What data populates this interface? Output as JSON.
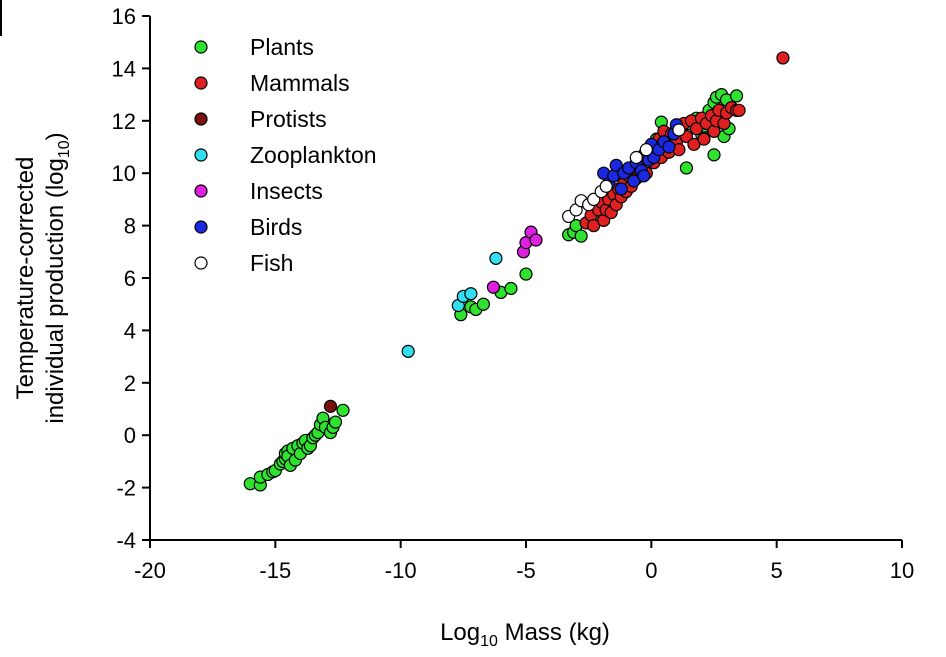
{
  "chart_data": {
    "type": "scatter",
    "title": "",
    "xlabel": {
      "pre": "Log",
      "sub": "10",
      "post": " Mass (kg)"
    },
    "ylabel": {
      "line1": "Temperature-corrected",
      "line2_pre": "individual production (log",
      "line2_sub": "10",
      "line2_post": ")"
    },
    "xlim": [
      -20,
      10
    ],
    "ylim": [
      -4,
      16
    ],
    "xticks": [
      -20,
      -15,
      -10,
      -5,
      0,
      5,
      10
    ],
    "yticks": [
      -4,
      -2,
      0,
      2,
      4,
      6,
      8,
      10,
      12,
      14,
      16
    ],
    "grid": false,
    "legend_position": "top-left",
    "series": [
      {
        "name": "Plants",
        "color": "#2ee22e",
        "points": [
          [
            -16.0,
            -1.85
          ],
          [
            -15.6,
            -1.9
          ],
          [
            -15.6,
            -1.6
          ],
          [
            -15.3,
            -1.5
          ],
          [
            -15.1,
            -1.4
          ],
          [
            -15.0,
            -1.35
          ],
          [
            -14.8,
            -1.1
          ],
          [
            -14.7,
            -1.0
          ],
          [
            -14.6,
            -0.9
          ],
          [
            -14.6,
            -0.7
          ],
          [
            -14.5,
            -0.6
          ],
          [
            -14.5,
            -0.8
          ],
          [
            -14.4,
            -1.15
          ],
          [
            -14.3,
            -0.5
          ],
          [
            -14.2,
            -0.95
          ],
          [
            -14.1,
            -0.4
          ],
          [
            -14.0,
            -0.7
          ],
          [
            -13.9,
            -0.3
          ],
          [
            -13.8,
            -0.2
          ],
          [
            -13.7,
            -0.5
          ],
          [
            -13.6,
            -0.4
          ],
          [
            -13.5,
            -0.1
          ],
          [
            -13.4,
            0.0
          ],
          [
            -13.3,
            0.1
          ],
          [
            -13.2,
            0.4
          ],
          [
            -13.1,
            0.65
          ],
          [
            -13.0,
            0.3
          ],
          [
            -12.8,
            0.1
          ],
          [
            -12.7,
            0.3
          ],
          [
            -12.6,
            0.5
          ],
          [
            -12.3,
            0.95
          ],
          [
            -7.6,
            4.6
          ],
          [
            -7.2,
            4.9
          ],
          [
            -7.0,
            4.8
          ],
          [
            -6.7,
            5.0
          ],
          [
            -6.0,
            5.45
          ],
          [
            -5.6,
            5.6
          ],
          [
            -5.0,
            6.15
          ],
          [
            -3.3,
            7.65
          ],
          [
            -3.1,
            7.75
          ],
          [
            -3.0,
            8.0
          ],
          [
            -2.8,
            7.6
          ],
          [
            -2.0,
            8.3
          ],
          [
            -1.5,
            8.9
          ],
          [
            -1.0,
            9.6
          ],
          [
            -0.5,
            10.3
          ],
          [
            -0.3,
            10.6
          ],
          [
            -0.1,
            10.8
          ],
          [
            0.2,
            11.3
          ],
          [
            0.4,
            11.95
          ],
          [
            0.6,
            11.4
          ],
          [
            0.9,
            11.0
          ],
          [
            1.2,
            11.6
          ],
          [
            1.4,
            10.2
          ],
          [
            1.5,
            11.9
          ],
          [
            1.8,
            12.1
          ],
          [
            2.0,
            11.5
          ],
          [
            2.1,
            11.8
          ],
          [
            2.3,
            12.4
          ],
          [
            2.4,
            12.1
          ],
          [
            2.5,
            12.7
          ],
          [
            2.5,
            10.7
          ],
          [
            2.6,
            12.9
          ],
          [
            2.7,
            12.3
          ],
          [
            2.8,
            13.0
          ],
          [
            2.9,
            11.4
          ],
          [
            3.0,
            12.8
          ],
          [
            3.1,
            11.7
          ],
          [
            3.2,
            12.5
          ],
          [
            3.4,
            12.95
          ]
        ]
      },
      {
        "name": "Mammals",
        "color": "#e02020",
        "points": [
          [
            -2.6,
            8.1
          ],
          [
            -2.4,
            8.4
          ],
          [
            -2.3,
            8.0
          ],
          [
            -2.1,
            8.6
          ],
          [
            -2.0,
            8.9
          ],
          [
            -1.9,
            8.2
          ],
          [
            -1.8,
            8.6
          ],
          [
            -1.7,
            9.0
          ],
          [
            -1.6,
            8.5
          ],
          [
            -1.5,
            9.2
          ],
          [
            -1.4,
            8.8
          ],
          [
            -1.3,
            9.4
          ],
          [
            -1.2,
            9.1
          ],
          [
            -1.1,
            9.6
          ],
          [
            -1.0,
            9.3
          ],
          [
            -0.9,
            9.9
          ],
          [
            -0.8,
            9.5
          ],
          [
            -0.7,
            10.2
          ],
          [
            -0.6,
            9.8
          ],
          [
            -0.5,
            10.4
          ],
          [
            -0.4,
            9.9
          ],
          [
            -0.3,
            10.7
          ],
          [
            -0.2,
            10.0
          ],
          [
            0.0,
            11.0
          ],
          [
            0.1,
            10.4
          ],
          [
            0.3,
            11.3
          ],
          [
            0.4,
            10.6
          ],
          [
            0.5,
            11.6
          ],
          [
            0.7,
            10.8
          ],
          [
            0.8,
            11.5
          ],
          [
            1.0,
            11.2
          ],
          [
            1.1,
            10.9
          ],
          [
            1.3,
            11.9
          ],
          [
            1.4,
            11.4
          ],
          [
            1.6,
            12.0
          ],
          [
            1.7,
            11.1
          ],
          [
            1.8,
            11.7
          ],
          [
            2.0,
            12.1
          ],
          [
            2.1,
            11.3
          ],
          [
            2.2,
            11.9
          ],
          [
            2.4,
            12.2
          ],
          [
            2.5,
            11.6
          ],
          [
            2.6,
            12.0
          ],
          [
            2.7,
            12.4
          ],
          [
            2.9,
            11.9
          ],
          [
            3.0,
            12.3
          ],
          [
            3.2,
            12.5
          ],
          [
            3.4,
            12.4
          ],
          [
            3.5,
            12.4
          ],
          [
            5.25,
            14.4
          ]
        ]
      },
      {
        "name": "Protists",
        "color": "#7a1010",
        "points": [
          [
            -12.8,
            1.1
          ]
        ]
      },
      {
        "name": "Zooplankton",
        "color": "#30e0f0",
        "points": [
          [
            -9.7,
            3.2
          ],
          [
            -7.7,
            4.95
          ],
          [
            -7.5,
            5.3
          ],
          [
            -7.2,
            5.4
          ],
          [
            -6.2,
            6.75
          ]
        ]
      },
      {
        "name": "Insects",
        "color": "#e020e0",
        "points": [
          [
            -6.3,
            5.65
          ],
          [
            -5.1,
            7.0
          ],
          [
            -5.0,
            7.35
          ],
          [
            -4.8,
            7.75
          ],
          [
            -4.6,
            7.45
          ]
        ]
      },
      {
        "name": "Birds",
        "color": "#1a28e0",
        "points": [
          [
            -1.9,
            10.0
          ],
          [
            -1.7,
            9.6
          ],
          [
            -1.5,
            9.9
          ],
          [
            -1.4,
            10.3
          ],
          [
            -1.2,
            9.4
          ],
          [
            -1.1,
            10.0
          ],
          [
            -0.9,
            10.2
          ],
          [
            -0.7,
            9.7
          ],
          [
            -0.6,
            10.4
          ],
          [
            -0.4,
            10.1
          ],
          [
            -0.3,
            9.9
          ],
          [
            -0.1,
            10.5
          ],
          [
            0.0,
            11.1
          ],
          [
            0.1,
            10.6
          ],
          [
            0.3,
            10.9
          ],
          [
            0.5,
            11.2
          ],
          [
            0.7,
            11.0
          ],
          [
            0.9,
            11.5
          ],
          [
            1.0,
            11.85
          ]
        ]
      },
      {
        "name": "Fish",
        "color": "#ffffff",
        "points": [
          [
            -3.3,
            8.35
          ],
          [
            -3.0,
            8.6
          ],
          [
            -2.8,
            8.95
          ],
          [
            -2.5,
            8.8
          ],
          [
            -2.3,
            9.0
          ],
          [
            -2.0,
            9.3
          ],
          [
            -1.8,
            9.5
          ],
          [
            -0.6,
            10.6
          ],
          [
            -0.2,
            10.9
          ],
          [
            1.1,
            11.65
          ]
        ]
      }
    ]
  }
}
